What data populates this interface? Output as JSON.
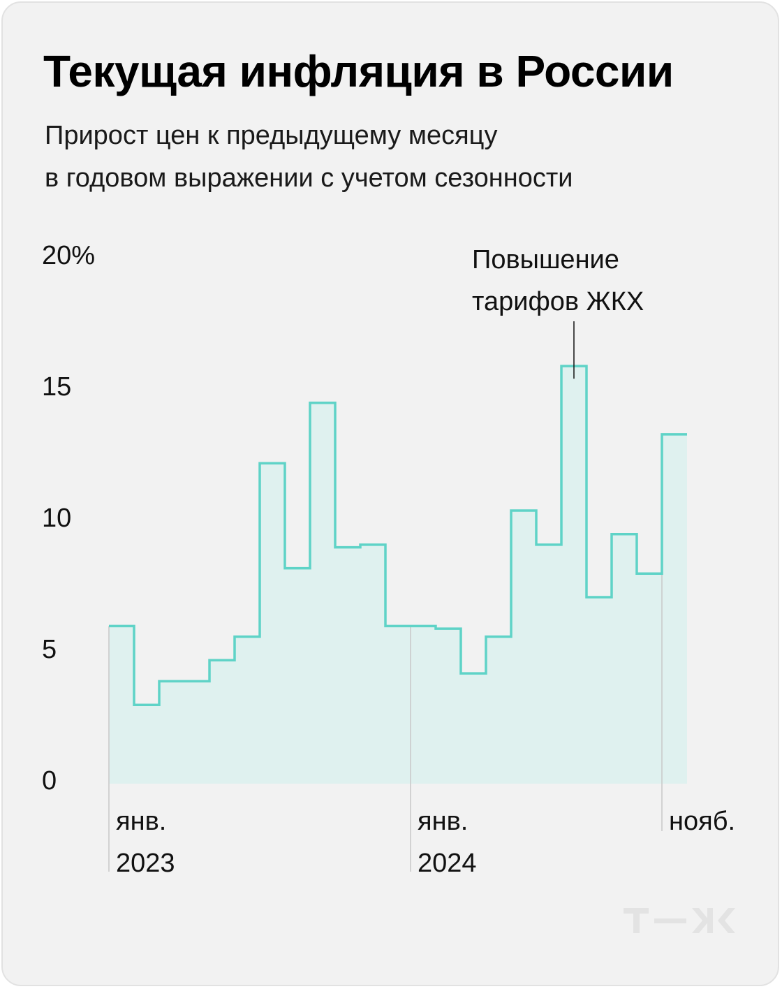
{
  "header": {
    "title": "Текущая инфляция в России",
    "subtitle_line1": "Прирост цен к предыдущему месяцу",
    "subtitle_line2": "в годовом выражении с учетом сезонности"
  },
  "logo": {
    "text": "т—ж",
    "color": "#e3e3e3"
  },
  "colors": {
    "line": "#5fd3c7",
    "fill": "#dff1ef",
    "grid": "#c8c8c8",
    "background": "#f2f2f2"
  },
  "chart_data": {
    "type": "area",
    "step": true,
    "title": "Текущая инфляция в России",
    "subtitle": "Прирост цен к предыдущему месяцу в годовом выражении с учетом сезонности",
    "xlabel": "",
    "ylabel": "",
    "ylim": [
      0,
      20
    ],
    "y_ticks": [
      "0",
      "5",
      "10",
      "15",
      "20%"
    ],
    "grid": false,
    "x_start": "2023-01",
    "x_end": "2024-11",
    "categories": [
      "2023-01",
      "2023-02",
      "2023-03",
      "2023-04",
      "2023-05",
      "2023-06",
      "2023-07",
      "2023-08",
      "2023-09",
      "2023-10",
      "2023-11",
      "2023-12",
      "2024-01",
      "2024-02",
      "2024-03",
      "2024-04",
      "2024-05",
      "2024-06",
      "2024-07",
      "2024-08",
      "2024-09",
      "2024-10",
      "2024-11"
    ],
    "values": [
      6.0,
      3.0,
      3.9,
      3.9,
      4.7,
      5.6,
      12.2,
      8.2,
      14.5,
      9.0,
      9.1,
      6.0,
      6.0,
      5.9,
      4.2,
      5.6,
      10.4,
      9.1,
      15.9,
      7.1,
      9.5,
      8.0,
      13.3
    ],
    "x_labels": [
      {
        "category": "2023-01",
        "line1": "янв.",
        "line2": "2023"
      },
      {
        "category": "2024-01",
        "line1": "янв.",
        "line2": "2024"
      },
      {
        "category": "2024-11",
        "line1": "нояб.",
        "line2": ""
      }
    ],
    "annotations": [
      {
        "category": "2024-07",
        "line1": "Повышение",
        "line2": "тарифов ЖКХ"
      }
    ]
  }
}
